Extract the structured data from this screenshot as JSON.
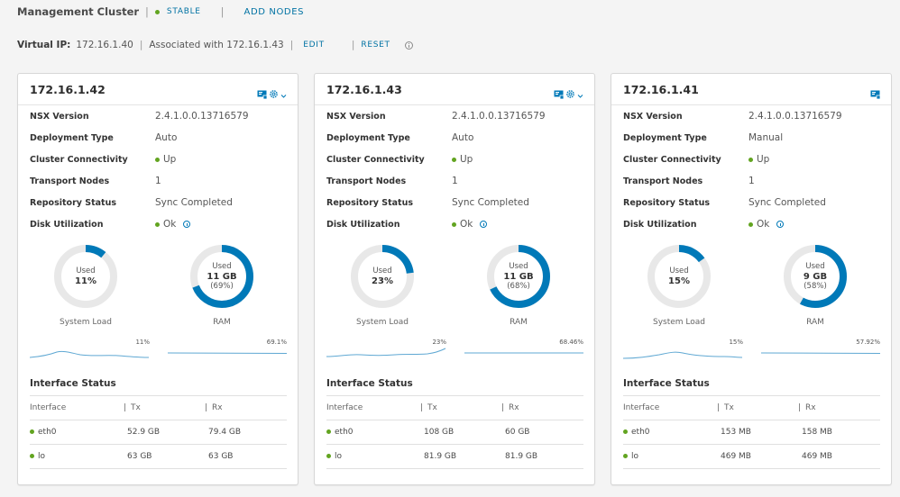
{
  "header": {
    "title": "Management Cluster",
    "status": "STABLE",
    "add_nodes": "ADD NODES"
  },
  "vip": {
    "label": "Virtual IP:",
    "ip": "172.16.1.40",
    "associated": "Associated with 172.16.1.43",
    "edit": "EDIT",
    "reset": "RESET"
  },
  "labels": {
    "nsx_version": "NSX Version",
    "deployment_type": "Deployment Type",
    "cluster_connectivity": "Cluster Connectivity",
    "transport_nodes": "Transport Nodes",
    "repository_status": "Repository Status",
    "disk_utilization": "Disk Utilization",
    "used": "Used",
    "system_load": "System Load",
    "ram": "RAM",
    "interface_status": "Interface Status",
    "col_interface": "Interface",
    "col_tx": "Tx",
    "col_rx": "Rx"
  },
  "colors": {
    "accent": "#0079b8",
    "ring_bg": "#e8e8e8",
    "ok_green": "#62a420",
    "link": "#0072a3"
  },
  "nodes": [
    {
      "ip": "172.16.1.42",
      "nsx_version": "2.4.1.0.0.13716579",
      "deployment_type": "Auto",
      "connectivity": "Up",
      "transport_nodes": "1",
      "repository_status": "Sync Completed",
      "disk_utilization": "Ok",
      "system_load": {
        "used_label": "11%",
        "fraction": 0.11,
        "spark_label": "11%"
      },
      "ram": {
        "used": "11 GB",
        "pct": "(69%)",
        "fraction": 0.69,
        "spark_label": "69.1%"
      },
      "interfaces": [
        {
          "name": "eth0",
          "tx": "52.9 GB",
          "rx": "79.4 GB"
        },
        {
          "name": "lo",
          "tx": "63 GB",
          "rx": "63 GB"
        }
      ],
      "icons": [
        "display-icon",
        "gear-icon",
        "chevron-down-icon"
      ]
    },
    {
      "ip": "172.16.1.43",
      "nsx_version": "2.4.1.0.0.13716579",
      "deployment_type": "Auto",
      "connectivity": "Up",
      "transport_nodes": "1",
      "repository_status": "Sync Completed",
      "disk_utilization": "Ok",
      "system_load": {
        "used_label": "23%",
        "fraction": 0.23,
        "spark_label": "23%"
      },
      "ram": {
        "used": "11 GB",
        "pct": "(68%)",
        "fraction": 0.68,
        "spark_label": "68.46%"
      },
      "interfaces": [
        {
          "name": "eth0",
          "tx": "108 GB",
          "rx": "60 GB"
        },
        {
          "name": "lo",
          "tx": "81.9 GB",
          "rx": "81.9 GB"
        }
      ],
      "icons": [
        "display-icon",
        "gear-icon",
        "chevron-down-icon"
      ]
    },
    {
      "ip": "172.16.1.41",
      "nsx_version": "2.4.1.0.0.13716579",
      "deployment_type": "Manual",
      "connectivity": "Up",
      "transport_nodes": "1",
      "repository_status": "Sync Completed",
      "disk_utilization": "Ok",
      "system_load": {
        "used_label": "15%",
        "fraction": 0.15,
        "spark_label": "15%"
      },
      "ram": {
        "used": "9 GB",
        "pct": "(58%)",
        "fraction": 0.58,
        "spark_label": "57.92%"
      },
      "interfaces": [
        {
          "name": "eth0",
          "tx": "153 MB",
          "rx": "158 MB"
        },
        {
          "name": "lo",
          "tx": "469 MB",
          "rx": "469 MB"
        }
      ],
      "icons": [
        "display-icon"
      ]
    }
  ]
}
